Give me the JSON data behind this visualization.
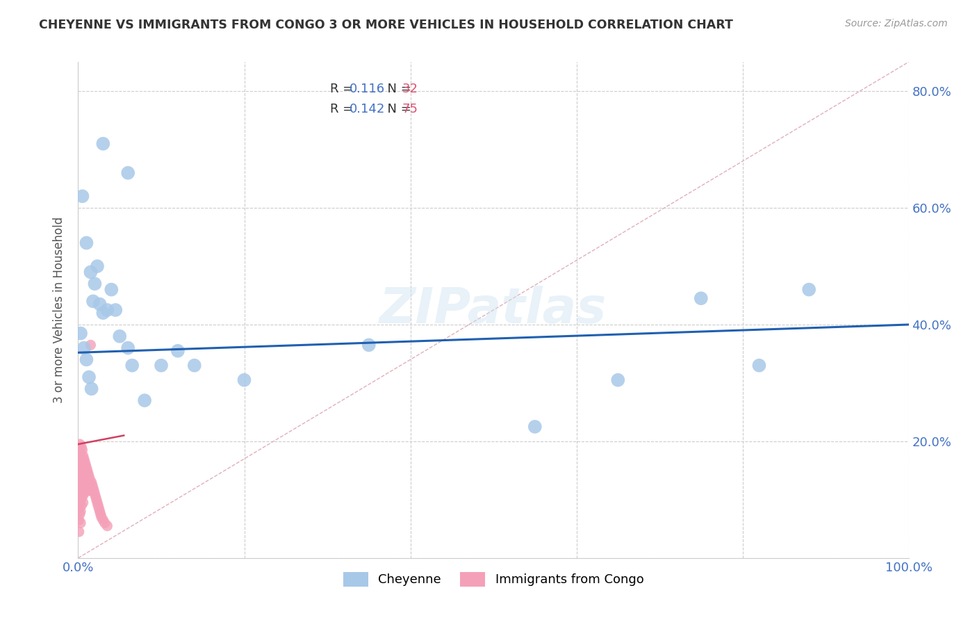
{
  "title": "CHEYENNE VS IMMIGRANTS FROM CONGO 3 OR MORE VEHICLES IN HOUSEHOLD CORRELATION CHART",
  "source": "Source: ZipAtlas.com",
  "ylabel": "3 or more Vehicles in Household",
  "xlim": [
    0.0,
    1.0
  ],
  "ylim": [
    0.0,
    0.85
  ],
  "yticks": [
    0.0,
    0.2,
    0.4,
    0.6,
    0.8
  ],
  "ytick_labels": [
    "",
    "20.0%",
    "40.0%",
    "60.0%",
    "80.0%"
  ],
  "xticks": [
    0.0,
    0.2,
    0.4,
    0.6,
    0.8,
    1.0
  ],
  "xtick_labels": [
    "0.0%",
    "",
    "",
    "",
    "",
    "100.0%"
  ],
  "cheyenne_R": 0.116,
  "cheyenne_N": 32,
  "congo_R": 0.142,
  "congo_N": 75,
  "cheyenne_color": "#a8c8e8",
  "cheyenne_line_color": "#2060b0",
  "congo_color": "#f4a0b8",
  "congo_line_color": "#d04060",
  "diagonal_color": "#e0b0b8",
  "background_color": "#ffffff",
  "watermark": "ZIPatlas",
  "cheyenne_x": [
    0.003,
    0.007,
    0.01,
    0.013,
    0.016,
    0.018,
    0.02,
    0.023,
    0.026,
    0.03,
    0.035,
    0.04,
    0.045,
    0.05,
    0.06,
    0.065,
    0.08,
    0.1,
    0.12,
    0.14,
    0.2,
    0.35,
    0.55,
    0.65,
    0.75,
    0.82,
    0.88,
    0.005,
    0.01,
    0.015,
    0.03,
    0.06
  ],
  "cheyenne_y": [
    0.385,
    0.36,
    0.34,
    0.31,
    0.29,
    0.44,
    0.47,
    0.5,
    0.435,
    0.42,
    0.425,
    0.46,
    0.425,
    0.38,
    0.36,
    0.33,
    0.27,
    0.33,
    0.355,
    0.33,
    0.305,
    0.365,
    0.225,
    0.305,
    0.445,
    0.33,
    0.46,
    0.62,
    0.54,
    0.49,
    0.71,
    0.66
  ],
  "cheyenne_line_start_y": 0.352,
  "cheyenne_line_end_y": 0.4,
  "congo_line_start_y": 0.195,
  "congo_line_end_y": 0.21,
  "congo_x": [
    0.001,
    0.001,
    0.001,
    0.001,
    0.001,
    0.001,
    0.001,
    0.001,
    0.002,
    0.002,
    0.002,
    0.002,
    0.002,
    0.002,
    0.002,
    0.003,
    0.003,
    0.003,
    0.003,
    0.003,
    0.003,
    0.003,
    0.004,
    0.004,
    0.004,
    0.004,
    0.004,
    0.004,
    0.005,
    0.005,
    0.005,
    0.005,
    0.005,
    0.006,
    0.006,
    0.006,
    0.006,
    0.006,
    0.007,
    0.007,
    0.007,
    0.007,
    0.008,
    0.008,
    0.008,
    0.009,
    0.009,
    0.01,
    0.01,
    0.01,
    0.011,
    0.011,
    0.012,
    0.012,
    0.013,
    0.013,
    0.014,
    0.015,
    0.015,
    0.016,
    0.017,
    0.018,
    0.019,
    0.02,
    0.021,
    0.022,
    0.023,
    0.024,
    0.025,
    0.026,
    0.027,
    0.028,
    0.03,
    0.032,
    0.035
  ],
  "congo_y": [
    0.185,
    0.165,
    0.145,
    0.125,
    0.105,
    0.085,
    0.065,
    0.045,
    0.195,
    0.175,
    0.155,
    0.135,
    0.115,
    0.095,
    0.075,
    0.18,
    0.16,
    0.14,
    0.12,
    0.1,
    0.08,
    0.06,
    0.19,
    0.17,
    0.15,
    0.13,
    0.11,
    0.09,
    0.185,
    0.165,
    0.145,
    0.125,
    0.105,
    0.175,
    0.155,
    0.135,
    0.115,
    0.095,
    0.17,
    0.15,
    0.13,
    0.11,
    0.165,
    0.145,
    0.125,
    0.16,
    0.14,
    0.155,
    0.135,
    0.115,
    0.15,
    0.13,
    0.145,
    0.125,
    0.14,
    0.12,
    0.135,
    0.365,
    0.115,
    0.13,
    0.125,
    0.12,
    0.115,
    0.11,
    0.105,
    0.1,
    0.095,
    0.09,
    0.085,
    0.08,
    0.075,
    0.07,
    0.065,
    0.06,
    0.055
  ]
}
